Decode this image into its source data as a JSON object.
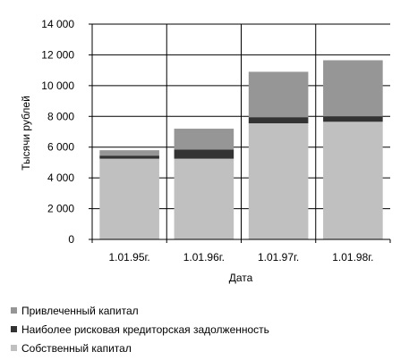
{
  "chart_data": {
    "type": "bar",
    "stacked": true,
    "categories": [
      "1.01.95г.",
      "1.01.96г.",
      "1.01.97г.",
      "1.01.98г."
    ],
    "series": [
      {
        "name": "Собственный капитал",
        "values": [
          5250,
          5250,
          7550,
          7650
        ],
        "color": "#c0c0c0"
      },
      {
        "name": "Наиболее рисковая кредиторская задолженность",
        "values": [
          200,
          600,
          400,
          350
        ],
        "color": "#333333"
      },
      {
        "name": "Привлеченный капитал",
        "values": [
          350,
          1350,
          2950,
          3650
        ],
        "color": "#969696"
      }
    ],
    "xlabel": "Дата",
    "ylabel": "Тысячи рублей",
    "ylim": [
      0,
      14000
    ],
    "yticks": [
      0,
      2000,
      4000,
      6000,
      8000,
      10000,
      12000,
      14000
    ],
    "ytick_labels": [
      "0",
      "2 000",
      "4 000",
      "6 000",
      "8 000",
      "10 000",
      "12 000",
      "14 000"
    ],
    "grid": "horizontal and vertical",
    "legend_position": "bottom-left",
    "legend_order": [
      2,
      1,
      0
    ]
  }
}
